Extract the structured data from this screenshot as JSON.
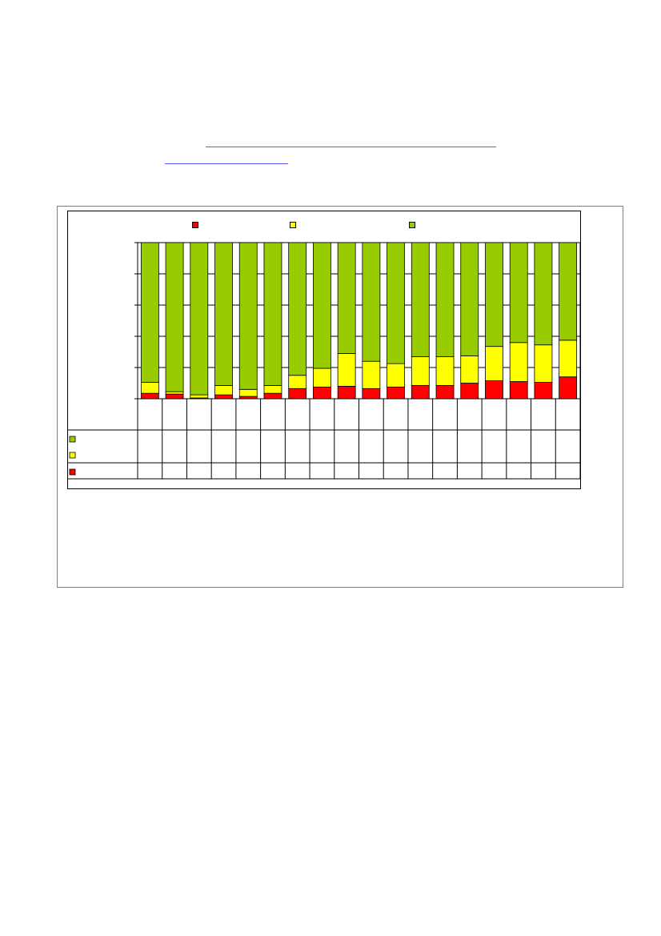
{
  "colors": {
    "bottom": "#ff0000",
    "middle": "#ffff00",
    "top": "#99cc00",
    "link": "#5b5bff",
    "grid": "#000000"
  },
  "chart_data": {
    "type": "bar",
    "stacked": true,
    "percent_stacked": true,
    "title": "",
    "xlabel": "",
    "ylabel": "",
    "ylim": [
      0,
      100
    ],
    "y_gridlines": [
      0,
      20,
      40,
      60,
      80,
      100
    ],
    "grid": true,
    "legend_position": "top",
    "categories_count": 18,
    "series": [
      {
        "color": "#ff0000",
        "values": [
          3.5,
          3,
          0.5,
          2.5,
          1.5,
          3.5,
          6.5,
          7.5,
          8,
          6.5,
          7.5,
          8.5,
          8.5,
          10,
          11.5,
          11,
          10.5,
          14
        ]
      },
      {
        "color": "#ffff00",
        "values": [
          7,
          1.5,
          2,
          6,
          4.5,
          5,
          8.5,
          12,
          21,
          17.5,
          15,
          18.5,
          18.5,
          17.5,
          22,
          25,
          24,
          23.5
        ]
      },
      {
        "color": "#99cc00",
        "values": [
          89.5,
          95.5,
          97.5,
          91.5,
          94,
          91.5,
          85,
          80.5,
          71,
          76,
          77.5,
          73,
          73,
          72.5,
          66.5,
          64,
          65.5,
          62.5
        ]
      }
    ]
  }
}
